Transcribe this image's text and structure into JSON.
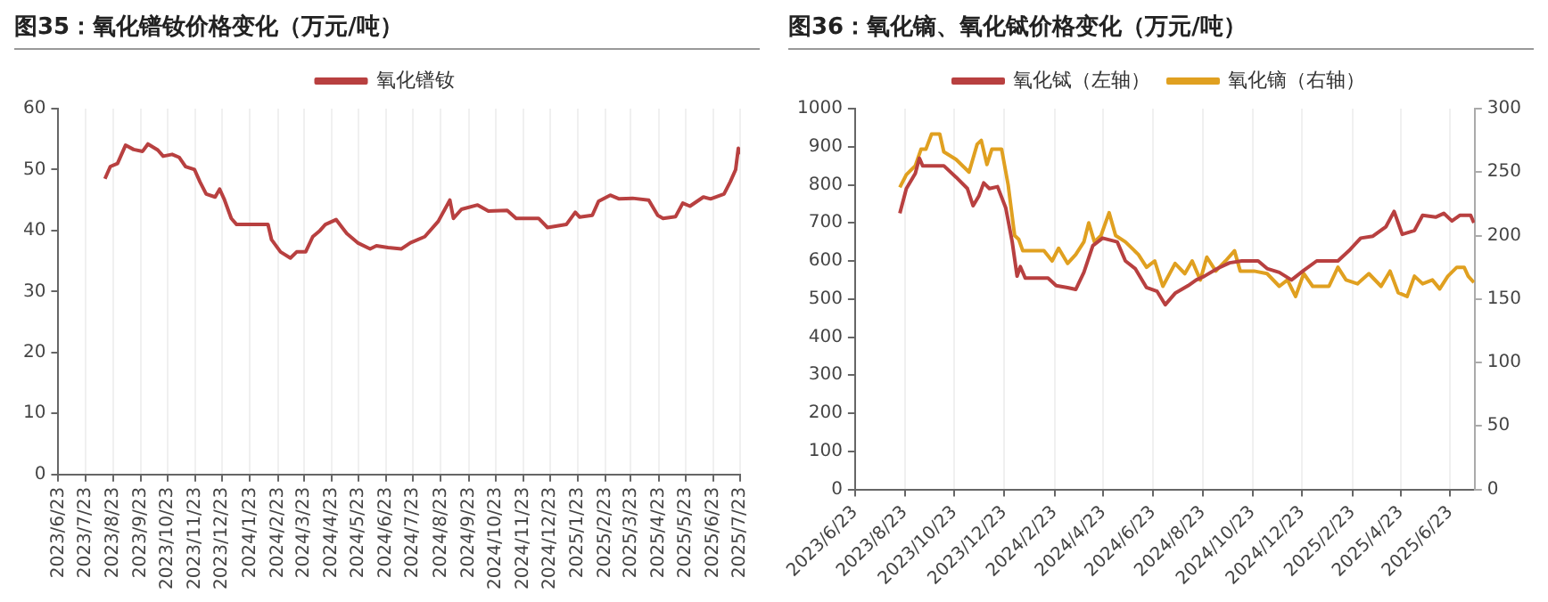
{
  "chart_data": [
    {
      "type": "line",
      "title": "图35：氧化镨钕价格变化（万元/吨）",
      "legend": "top",
      "grid": "x",
      "xlim": [
        "2023-06-23",
        "2025-07-23"
      ],
      "xticks": [
        {
          "value": "2023-06-23",
          "label": "2023/6/23"
        },
        {
          "value": "2023-07-23",
          "label": "2023/7/23"
        },
        {
          "value": "2023-08-23",
          "label": "2023/8/23"
        },
        {
          "value": "2023-09-23",
          "label": "2023/9/23"
        },
        {
          "value": "2023-10-23",
          "label": "2023/10/23"
        },
        {
          "value": "2023-11-23",
          "label": "2023/11/23"
        },
        {
          "value": "2023-12-23",
          "label": "2023/12/23"
        },
        {
          "value": "2024-01-23",
          "label": "2024/1/23"
        },
        {
          "value": "2024-02-23",
          "label": "2024/2/23"
        },
        {
          "value": "2024-03-23",
          "label": "2024/3/23"
        },
        {
          "value": "2024-04-23",
          "label": "2024/4/23"
        },
        {
          "value": "2024-05-23",
          "label": "2024/5/23"
        },
        {
          "value": "2024-06-23",
          "label": "2024/6/23"
        },
        {
          "value": "2024-07-23",
          "label": "2024/7/23"
        },
        {
          "value": "2024-08-23",
          "label": "2024/8/23"
        },
        {
          "value": "2024-09-23",
          "label": "2024/9/23"
        },
        {
          "value": "2024-10-23",
          "label": "2024/10/23"
        },
        {
          "value": "2024-11-23",
          "label": "2024/11/23"
        },
        {
          "value": "2024-12-23",
          "label": "2024/12/23"
        },
        {
          "value": "2025-01-23",
          "label": "2025/1/23"
        },
        {
          "value": "2025-02-23",
          "label": "2025/2/23"
        },
        {
          "value": "2025-03-23",
          "label": "2025/3/23"
        },
        {
          "value": "2025-04-23",
          "label": "2025/4/23"
        },
        {
          "value": "2025-05-23",
          "label": "2025/5/23"
        },
        {
          "value": "2025-06-23",
          "label": "2025/6/23"
        },
        {
          "value": "2025-07-23",
          "label": "2025/7/23"
        }
      ],
      "ylim": [
        0,
        60
      ],
      "yticks": [
        0,
        10,
        20,
        30,
        40,
        50,
        60
      ],
      "x": [
        "2023-08-14",
        "2023-08-20",
        "2023-08-28",
        "2023-09-06",
        "2023-09-15",
        "2023-09-25",
        "2023-10-01",
        "2023-10-12",
        "2023-10-18",
        "2023-10-28",
        "2023-11-05",
        "2023-11-12",
        "2023-11-22",
        "2023-11-28",
        "2023-12-05",
        "2023-12-15",
        "2023-12-20",
        "2023-12-25",
        "2024-01-02",
        "2024-01-08",
        "2024-02-12",
        "2024-02-16",
        "2024-02-26",
        "2024-03-08",
        "2024-03-15",
        "2024-03-25",
        "2024-04-02",
        "2024-04-10",
        "2024-04-16",
        "2024-04-28",
        "2024-05-10",
        "2024-05-22",
        "2024-06-05",
        "2024-06-12",
        "2024-06-25",
        "2024-07-10",
        "2024-07-20",
        "2024-08-05",
        "2024-08-20",
        "2024-09-02",
        "2024-09-06",
        "2024-09-15",
        "2024-10-03",
        "2024-10-15",
        "2024-11-05",
        "2024-11-15",
        "2024-12-10",
        "2024-12-20",
        "2025-01-10",
        "2025-01-20",
        "2025-01-25",
        "2025-02-08",
        "2025-02-15",
        "2025-02-28",
        "2025-03-10",
        "2025-03-25",
        "2025-04-12",
        "2025-04-22",
        "2025-04-28",
        "2025-05-12",
        "2025-05-20",
        "2025-05-28",
        "2025-06-12",
        "2025-06-20",
        "2025-07-05",
        "2025-07-12",
        "2025-07-18",
        "2025-07-21",
        "2025-07-22"
      ],
      "series": [
        {
          "name": "氧化镨钕",
          "color": "#b84040",
          "values": [
            48.5,
            50.5,
            51,
            54,
            53.3,
            53,
            54.2,
            53.2,
            52.2,
            52.5,
            52,
            50.5,
            50,
            48,
            46,
            45.5,
            46.8,
            45.2,
            42,
            41,
            41,
            38.5,
            36.5,
            35.5,
            36.5,
            36.5,
            39,
            40,
            41,
            41.8,
            39.5,
            38,
            37,
            37.5,
            37.2,
            37,
            38,
            39,
            41.5,
            45,
            42,
            43.5,
            44.2,
            43.2,
            43.3,
            42,
            42,
            40.5,
            41,
            43,
            42.2,
            42.5,
            44.8,
            45.8,
            45.2,
            45.3,
            45,
            42.5,
            42,
            42.3,
            44.5,
            44,
            45.5,
            45.2,
            46,
            48,
            50,
            53.5,
            52.5
          ]
        }
      ]
    },
    {
      "type": "line",
      "title": "图36：氧化镝、氧化铽价格变化（万元/吨）",
      "legend": "top",
      "grid": "x",
      "xlim": [
        "2023-06-23",
        "2025-07-23"
      ],
      "xticks": [
        {
          "value": "2023-06-23",
          "label": "2023/6/23"
        },
        {
          "value": "2023-08-23",
          "label": "2023/8/23"
        },
        {
          "value": "2023-10-23",
          "label": "2023/10/23"
        },
        {
          "value": "2023-12-23",
          "label": "2023/12/23"
        },
        {
          "value": "2024-02-23",
          "label": "2024/2/23"
        },
        {
          "value": "2024-04-23",
          "label": "2024/4/23"
        },
        {
          "value": "2024-06-23",
          "label": "2024/6/23"
        },
        {
          "value": "2024-08-23",
          "label": "2024/8/23"
        },
        {
          "value": "2024-10-23",
          "label": "2024/10/23"
        },
        {
          "value": "2024-12-23",
          "label": "2024/12/23"
        },
        {
          "value": "2025-02-23",
          "label": "2025/2/23"
        },
        {
          "value": "2025-04-23",
          "label": "2025/4/23"
        },
        {
          "value": "2025-06-23",
          "label": "2025/6/23"
        }
      ],
      "ylim": [
        0,
        1000
      ],
      "yticks": [
        0,
        100,
        200,
        300,
        400,
        500,
        600,
        700,
        800,
        900,
        1000
      ],
      "y2lim": [
        0,
        300
      ],
      "y2ticks": [
        0,
        50,
        100,
        150,
        200,
        250,
        300
      ],
      "series": [
        {
          "name": "氧化铽（左轴）",
          "color": "#b84040",
          "x": [
            "2023-08-17",
            "2023-08-25",
            "2023-09-05",
            "2023-09-10",
            "2023-09-14",
            "2023-10-10",
            "2023-10-25",
            "2023-11-08",
            "2023-11-15",
            "2023-11-22",
            "2023-11-28",
            "2023-12-05",
            "2023-12-15",
            "2023-12-25",
            "2024-01-02",
            "2024-01-08",
            "2024-01-12",
            "2024-01-18",
            "2024-02-15",
            "2024-02-25",
            "2024-03-10",
            "2024-03-20",
            "2024-03-30",
            "2024-04-10",
            "2024-04-22",
            "2024-05-10",
            "2024-05-20",
            "2024-06-01",
            "2024-06-15",
            "2024-06-28",
            "2024-07-08",
            "2024-07-20",
            "2024-08-05",
            "2024-08-15",
            "2024-08-25",
            "2024-09-10",
            "2024-09-25",
            "2024-10-10",
            "2024-10-30",
            "2024-11-10",
            "2024-11-25",
            "2024-12-10",
            "2024-12-25",
            "2025-01-10",
            "2025-02-05",
            "2025-02-20",
            "2025-03-05",
            "2025-03-20",
            "2025-04-05",
            "2025-04-15",
            "2025-04-25",
            "2025-05-10",
            "2025-05-20",
            "2025-06-05",
            "2025-06-15",
            "2025-06-25",
            "2025-07-05",
            "2025-07-18",
            "2025-07-22"
          ],
          "values": [
            725,
            790,
            830,
            870,
            850,
            850,
            820,
            790,
            745,
            770,
            805,
            790,
            795,
            740,
            650,
            560,
            585,
            555,
            555,
            535,
            530,
            525,
            570,
            640,
            660,
            650,
            600,
            580,
            530,
            520,
            485,
            515,
            535,
            550,
            560,
            580,
            595,
            600,
            600,
            580,
            570,
            550,
            575,
            600,
            600,
            630,
            660,
            665,
            690,
            730,
            670,
            680,
            720,
            715,
            725,
            705,
            720,
            720,
            700
          ]
        },
        {
          "name": "氧化镝（右轴）",
          "color": "#e0a020",
          "axis": "y2",
          "x": [
            "2023-08-17",
            "2023-08-25",
            "2023-09-05",
            "2023-09-12",
            "2023-09-18",
            "2023-09-25",
            "2023-10-05",
            "2023-10-10",
            "2023-10-25",
            "2023-11-10",
            "2023-11-20",
            "2023-11-25",
            "2023-12-02",
            "2023-12-08",
            "2023-12-20",
            "2023-12-28",
            "2024-01-05",
            "2024-01-10",
            "2024-01-15",
            "2024-02-10",
            "2024-02-20",
            "2024-02-28",
            "2024-03-10",
            "2024-03-20",
            "2024-03-30",
            "2024-04-05",
            "2024-04-12",
            "2024-04-20",
            "2024-04-30",
            "2024-05-08",
            "2024-05-20",
            "2024-06-05",
            "2024-06-15",
            "2024-06-25",
            "2024-07-05",
            "2024-07-20",
            "2024-08-01",
            "2024-08-10",
            "2024-08-20",
            "2024-08-28",
            "2024-09-08",
            "2024-09-20",
            "2024-10-01",
            "2024-10-08",
            "2024-10-25",
            "2024-11-10",
            "2024-11-25",
            "2024-12-05",
            "2024-12-15",
            "2024-12-25",
            "2025-01-05",
            "2025-01-25",
            "2025-02-05",
            "2025-02-15",
            "2025-03-01",
            "2025-03-15",
            "2025-03-30",
            "2025-04-10",
            "2025-04-20",
            "2025-05-01",
            "2025-05-10",
            "2025-05-20",
            "2025-06-01",
            "2025-06-10",
            "2025-06-20",
            "2025-07-01",
            "2025-07-10",
            "2025-07-15",
            "2025-07-22"
          ],
          "values": [
            238,
            248,
            255,
            268,
            268,
            280,
            280,
            266,
            260,
            250,
            272,
            275,
            256,
            268,
            268,
            240,
            200,
            197,
            188,
            188,
            180,
            190,
            178,
            185,
            195,
            210,
            195,
            200,
            218,
            200,
            195,
            185,
            175,
            180,
            160,
            178,
            170,
            180,
            165,
            183,
            172,
            180,
            188,
            172,
            172,
            170,
            160,
            165,
            152,
            170,
            160,
            160,
            175,
            165,
            162,
            170,
            160,
            172,
            155,
            152,
            168,
            162,
            165,
            158,
            168,
            175,
            175,
            168,
            163
          ]
        }
      ]
    }
  ]
}
